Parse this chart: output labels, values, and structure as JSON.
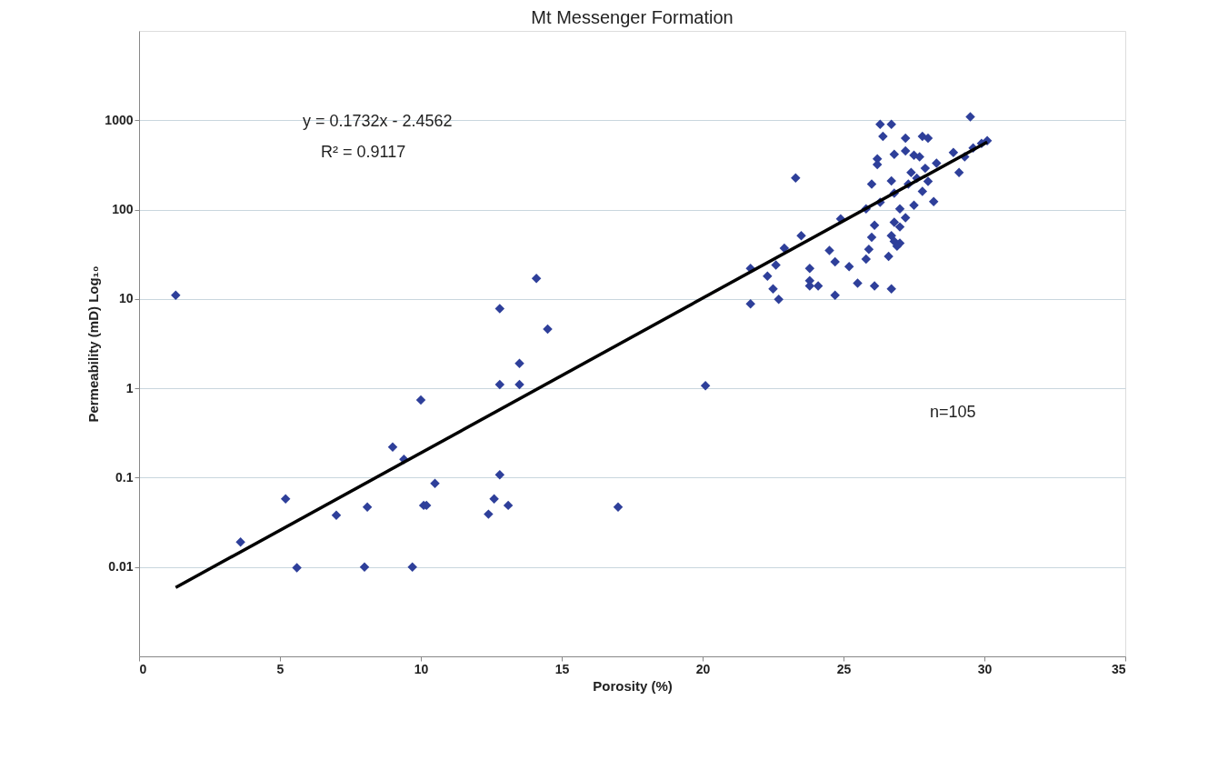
{
  "chart_data": {
    "type": "scatter",
    "title": "Mt Messenger Formation",
    "xlabel": "Porosity (%)",
    "ylabel": "Permeability (mD) Log₁₀",
    "xlim": [
      0,
      35
    ],
    "xticks": [
      0,
      5,
      10,
      15,
      20,
      25,
      30,
      35
    ],
    "ylim": [
      0.001,
      10000
    ],
    "yticks": [
      0.01,
      0.1,
      1,
      10,
      100,
      1000
    ],
    "log": "y",
    "grid": "y",
    "annotations": [
      "y = 0.1732x - 2.4562",
      "R² = 0.9117",
      "n=105"
    ],
    "series": [
      {
        "color": "#2e3f9a",
        "marker": "diamond",
        "x": [
          1.3,
          3.6,
          5.2,
          5.6,
          7.0,
          8.1,
          8.0,
          9.0,
          9.4,
          10.0,
          9.7,
          10.1,
          10.2,
          10.5,
          12.4,
          12.6,
          12.8,
          13.1,
          12.8,
          13.5,
          13.5,
          12.8,
          14.5,
          14.1,
          17.0,
          20.1,
          23.3,
          23.5,
          22.9,
          21.7,
          22.6,
          22.3,
          22.5,
          22.7,
          21.7,
          23.8,
          23.8,
          23.8,
          26.3,
          26.7,
          26.4,
          29.5,
          27.2,
          27.8,
          28.0,
          26.2,
          26.2,
          26.8,
          27.2,
          27.5,
          27.7,
          28.9,
          29.3,
          29.6,
          29.9,
          30.1,
          28.3,
          29.1,
          27.4,
          27.9,
          27.6,
          26.0,
          26.7,
          27.3,
          28.0,
          27.8,
          26.8,
          26.3,
          25.8,
          28.2,
          27.5,
          27.0,
          24.9,
          27.2,
          26.8,
          27.0,
          26.1,
          26.0,
          26.7,
          26.8,
          27.0,
          25.9,
          25.8,
          26.6,
          26.9,
          24.5,
          24.7,
          25.2,
          24.1,
          24.7,
          25.5,
          26.1,
          26.7
        ],
        "values": [
          11,
          0.019,
          0.058,
          0.0098,
          0.038,
          0.047,
          0.01,
          0.22,
          0.16,
          0.74,
          0.01,
          0.049,
          0.049,
          0.086,
          0.039,
          0.058,
          0.108,
          0.049,
          1.1,
          1.1,
          1.9,
          7.8,
          4.6,
          17,
          0.047,
          1.07,
          226,
          51,
          37,
          22,
          24,
          18,
          13,
          9.9,
          8.8,
          22,
          16,
          14,
          900,
          900,
          660,
          1090,
          630,
          660,
          630,
          370,
          320,
          415,
          455,
          405,
          390,
          435,
          390,
          490,
          550,
          590,
          330,
          260,
          260,
          290,
          225,
          193,
          210,
          193,
          207,
          160,
          153,
          121,
          102,
          123,
          112,
          102,
          79,
          81,
          72,
          64,
          67,
          49,
          51,
          44,
          42,
          36,
          28,
          30,
          39,
          35,
          26,
          23,
          14,
          11,
          15,
          14,
          13
        ]
      },
      {
        "type": "line",
        "marker": "none",
        "color": "#000000",
        "x": [
          1.3,
          30.1
        ],
        "values": [
          0.0059,
          571
        ]
      }
    ]
  }
}
